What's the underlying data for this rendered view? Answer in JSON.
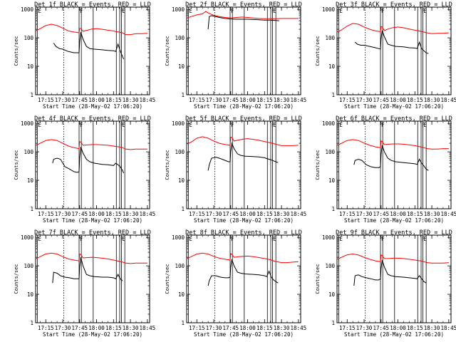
{
  "chart_data": {
    "type": "line",
    "grid": false,
    "legend": "in-title",
    "colors": {
      "events": "#000000",
      "lld": "#ff0000"
    },
    "x_tick_labels": [
      "17:15",
      "17:30",
      "17:45",
      "18:00",
      "18:15",
      "18:30",
      "18:45"
    ],
    "x_tick_minutes": [
      1035,
      1050,
      1065,
      1080,
      1095,
      1110,
      1125
    ],
    "xlim_minutes": [
      1026,
      1127
    ],
    "ylim": [
      1,
      1200
    ],
    "yscale": "log",
    "y_tick_labels": [
      "1",
      "10",
      "100",
      "1000"
    ],
    "y_tick_values": [
      1,
      10,
      100,
      1000
    ],
    "xlabel": "Start Time (28-May-02 17:06:20)",
    "ylabel": "Counts/sec",
    "vertical_markers": {
      "dotted_minutes": [
        1051
      ],
      "solid_minutes": [
        1064.5,
        1066.5,
        1077,
        1097.5,
        1100.5,
        1102,
        1105
      ],
      "edge_solid_minutes": [
        1027.5
      ]
    },
    "flag_labels": [
      "E",
      "F",
      "F",
      "E"
    ],
    "panels": [
      {
        "title": "Det 1f BLACK = Events, RED = LLD",
        "lld": {
          "x": [
            1026.5,
            1030,
            1035,
            1040,
            1045,
            1050,
            1055,
            1060,
            1063,
            1064.5,
            1065,
            1066,
            1068,
            1072,
            1076,
            1080,
            1085,
            1090,
            1095,
            1097,
            1100,
            1103,
            1106,
            1110,
            1115,
            1120,
            1125
          ],
          "y": [
            180,
            210,
            270,
            300,
            270,
            220,
            175,
            160,
            155,
            150,
            210,
            215,
            170,
            185,
            205,
            210,
            200,
            185,
            175,
            165,
            160,
            150,
            130,
            130,
            140,
            140,
            145
          ]
        },
        "events": {
          "x": [
            1042,
            1044,
            1047,
            1050,
            1055,
            1060,
            1063,
            1064.5,
            1065,
            1066,
            1068,
            1071,
            1074,
            1078,
            1085,
            1090,
            1095,
            1097,
            1099,
            1101,
            1102,
            1103,
            1104
          ],
          "y": [
            65,
            50,
            42,
            40,
            33,
            30,
            30,
            30,
            70,
            160,
            90,
            50,
            42,
            40,
            38,
            36,
            35,
            33,
            60,
            35,
            28,
            22,
            18
          ]
        }
      },
      {
        "title": "Det 2f BLACK = Events, RED = LLD",
        "lld": {
          "x": [
            1026.5,
            1030,
            1035,
            1040,
            1043,
            1045,
            1050,
            1055,
            1060,
            1065,
            1070,
            1075,
            1080,
            1085,
            1090,
            1095,
            1100,
            1105,
            1110,
            1115,
            1120,
            1125
          ],
          "y": [
            500,
            560,
            640,
            700,
            850,
            750,
            620,
            560,
            520,
            500,
            520,
            540,
            520,
            500,
            480,
            470,
            470,
            470,
            480,
            480,
            480,
            480
          ]
        },
        "events": {
          "x": [
            1045,
            1046,
            1048,
            1050,
            1055,
            1060,
            1065,
            1070,
            1075,
            1080,
            1085,
            1090,
            1095,
            1100,
            1104,
            1108
          ],
          "y": [
            200,
            560,
            600,
            580,
            520,
            480,
            460,
            450,
            450,
            450,
            440,
            430,
            420,
            420,
            410,
            400
          ]
        }
      },
      {
        "title": "Det 3f BLACK = Events, RED = LLD",
        "lld": {
          "x": [
            1026.5,
            1030,
            1035,
            1040,
            1045,
            1050,
            1055,
            1060,
            1064.5,
            1065,
            1066,
            1068,
            1072,
            1076,
            1080,
            1085,
            1090,
            1095,
            1100,
            1103,
            1106,
            1110,
            1115,
            1120,
            1125
          ],
          "y": [
            160,
            190,
            260,
            320,
            300,
            240,
            200,
            175,
            165,
            250,
            240,
            180,
            210,
            230,
            240,
            225,
            205,
            185,
            170,
            160,
            150,
            140,
            145,
            145,
            150
          ]
        },
        "events": {
          "x": [
            1042,
            1044,
            1047,
            1050,
            1055,
            1060,
            1063,
            1064.5,
            1065,
            1066,
            1068,
            1071,
            1074,
            1078,
            1085,
            1090,
            1095,
            1097,
            1099,
            1101,
            1103,
            1105,
            1107
          ],
          "y": [
            70,
            60,
            55,
            55,
            50,
            45,
            42,
            40,
            90,
            180,
            110,
            60,
            55,
            50,
            48,
            45,
            44,
            42,
            70,
            42,
            35,
            30,
            28
          ]
        }
      },
      {
        "title": "Det 4f BLACK = Events, RED = LLD",
        "lld": {
          "x": [
            1026.5,
            1030,
            1035,
            1040,
            1045,
            1050,
            1055,
            1060,
            1064.5,
            1065,
            1066,
            1068,
            1072,
            1076,
            1080,
            1085,
            1090,
            1095,
            1100,
            1103,
            1106,
            1110,
            1115,
            1120,
            1125
          ],
          "y": [
            170,
            200,
            250,
            270,
            250,
            200,
            160,
            140,
            130,
            230,
            220,
            170,
            175,
            180,
            180,
            175,
            170,
            160,
            150,
            140,
            125,
            120,
            125,
            125,
            125
          ]
        },
        "events": {
          "x": [
            1041,
            1042,
            1045,
            1048,
            1052,
            1056,
            1060,
            1063,
            1064.5,
            1065,
            1066,
            1068,
            1071,
            1074,
            1078,
            1085,
            1090,
            1095,
            1097,
            1099,
            1101,
            1103,
            1104
          ],
          "y": [
            40,
            55,
            60,
            55,
            30,
            25,
            20,
            19,
            20,
            60,
            150,
            90,
            55,
            45,
            40,
            36,
            35,
            33,
            40,
            35,
            30,
            22,
            18
          ]
        }
      },
      {
        "title": "Det 5f BLACK = Events, RED = LLD",
        "lld": {
          "x": [
            1026.5,
            1030,
            1035,
            1040,
            1045,
            1050,
            1055,
            1060,
            1064.5,
            1065,
            1066,
            1068,
            1072,
            1076,
            1080,
            1085,
            1090,
            1095,
            1100,
            1103,
            1106,
            1110,
            1115,
            1120,
            1125
          ],
          "y": [
            190,
            220,
            300,
            340,
            300,
            240,
            200,
            180,
            170,
            330,
            320,
            240,
            260,
            280,
            290,
            275,
            255,
            230,
            210,
            195,
            180,
            165,
            165,
            165,
            170
          ]
        },
        "events": {
          "x": [
            1045,
            1046,
            1048,
            1052,
            1056,
            1060,
            1063,
            1064.5,
            1065,
            1066,
            1068,
            1071,
            1074,
            1078,
            1085,
            1090,
            1095,
            1097,
            1099,
            1101,
            1103,
            1105,
            1107
          ],
          "y": [
            22,
            35,
            60,
            65,
            58,
            50,
            45,
            45,
            100,
            200,
            130,
            85,
            75,
            70,
            68,
            66,
            62,
            58,
            55,
            52,
            48,
            45,
            42
          ]
        }
      },
      {
        "title": "Det 6f BLACK = Events, RED = LLD",
        "lld": {
          "x": [
            1026.5,
            1030,
            1035,
            1040,
            1045,
            1050,
            1055,
            1060,
            1064.5,
            1065,
            1066,
            1068,
            1072,
            1076,
            1080,
            1085,
            1090,
            1095,
            1100,
            1103,
            1106,
            1110,
            1115,
            1120,
            1125
          ],
          "y": [
            170,
            200,
            250,
            270,
            250,
            205,
            170,
            150,
            140,
            240,
            230,
            180,
            185,
            190,
            190,
            185,
            175,
            165,
            150,
            140,
            130,
            125,
            125,
            130,
            130
          ]
        },
        "events": {
          "x": [
            1041,
            1042,
            1045,
            1048,
            1052,
            1056,
            1060,
            1063,
            1064.5,
            1065,
            1066,
            1068,
            1071,
            1074,
            1078,
            1085,
            1090,
            1095,
            1097,
            1099,
            1101,
            1103,
            1105,
            1107
          ],
          "y": [
            35,
            50,
            55,
            50,
            35,
            30,
            28,
            28,
            30,
            80,
            170,
            100,
            60,
            50,
            45,
            42,
            40,
            38,
            36,
            55,
            40,
            32,
            25,
            22
          ]
        }
      },
      {
        "title": "Det 7f BLACK = Events, RED = LLD",
        "lld": {
          "x": [
            1026.5,
            1030,
            1035,
            1040,
            1045,
            1050,
            1055,
            1060,
            1064.5,
            1065,
            1066,
            1068,
            1072,
            1076,
            1080,
            1085,
            1090,
            1095,
            1100,
            1103,
            1106,
            1110,
            1115,
            1120,
            1125
          ],
          "y": [
            180,
            210,
            260,
            280,
            260,
            210,
            175,
            160,
            150,
            260,
            250,
            190,
            195,
            200,
            195,
            185,
            175,
            160,
            145,
            135,
            125,
            120,
            125,
            125,
            125
          ]
        },
        "events": {
          "x": [
            1041,
            1042,
            1045,
            1048,
            1052,
            1056,
            1060,
            1063,
            1064.5,
            1065,
            1066,
            1068,
            1071,
            1074,
            1078,
            1085,
            1090,
            1095,
            1097,
            1099,
            1101,
            1103
          ],
          "y": [
            25,
            60,
            55,
            45,
            40,
            38,
            35,
            35,
            35,
            90,
            200,
            100,
            50,
            45,
            42,
            40,
            40,
            38,
            35,
            50,
            35,
            30
          ]
        }
      },
      {
        "title": "Det 8f BLACK = Events, RED = LLD",
        "lld": {
          "x": [
            1026.5,
            1030,
            1035,
            1040,
            1045,
            1050,
            1055,
            1060,
            1064.5,
            1065,
            1066,
            1068,
            1072,
            1076,
            1080,
            1085,
            1090,
            1095,
            1100,
            1103,
            1106,
            1110,
            1115,
            1120,
            1125
          ],
          "y": [
            180,
            210,
            260,
            280,
            260,
            215,
            185,
            170,
            160,
            270,
            255,
            200,
            210,
            215,
            220,
            210,
            195,
            180,
            165,
            150,
            140,
            130,
            130,
            135,
            140
          ]
        },
        "events": {
          "x": [
            1045,
            1046,
            1048,
            1052,
            1056,
            1060,
            1063,
            1064.5,
            1065,
            1066,
            1068,
            1071,
            1074,
            1078,
            1085,
            1090,
            1095,
            1097,
            1099,
            1101,
            1103,
            1105,
            1107
          ],
          "y": [
            20,
            30,
            45,
            45,
            40,
            38,
            38,
            40,
            90,
            170,
            100,
            60,
            55,
            52,
            50,
            48,
            45,
            42,
            65,
            40,
            32,
            28,
            25
          ]
        }
      },
      {
        "title": "Det 9f BLACK = Events, RED = LLD",
        "lld": {
          "x": [
            1026.5,
            1030,
            1035,
            1040,
            1045,
            1050,
            1055,
            1060,
            1064.5,
            1065,
            1066,
            1068,
            1072,
            1076,
            1080,
            1085,
            1090,
            1095,
            1100,
            1103,
            1106,
            1110,
            1115,
            1120,
            1125
          ],
          "y": [
            170,
            200,
            245,
            260,
            240,
            200,
            170,
            150,
            140,
            240,
            230,
            180,
            180,
            185,
            185,
            180,
            170,
            160,
            150,
            140,
            130,
            125,
            125,
            125,
            130
          ]
        },
        "events": {
          "x": [
            1041,
            1042,
            1045,
            1048,
            1052,
            1056,
            1060,
            1063,
            1064.5,
            1065,
            1066,
            1068,
            1071,
            1074,
            1078,
            1085,
            1090,
            1095,
            1097,
            1099,
            1101,
            1103,
            1105
          ],
          "y": [
            20,
            45,
            48,
            42,
            38,
            35,
            32,
            32,
            35,
            80,
            160,
            90,
            50,
            45,
            42,
            40,
            38,
            36,
            35,
            45,
            35,
            28,
            25
          ]
        }
      }
    ]
  }
}
